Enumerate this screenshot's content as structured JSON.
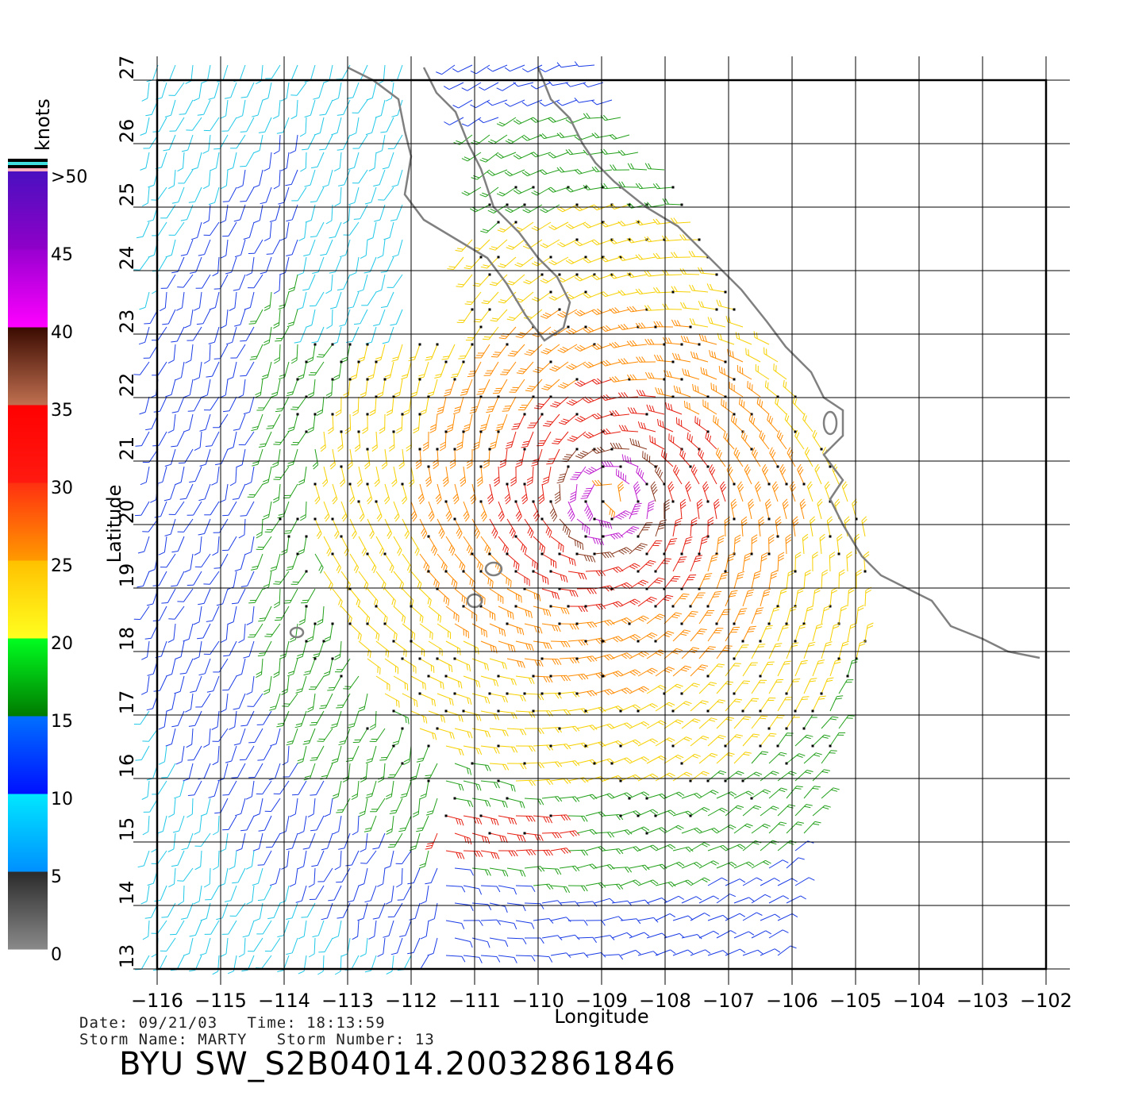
{
  "map": {
    "xaxis": {
      "label": "Longitude",
      "ticks": [
        "-116",
        "-115",
        "-114",
        "-113",
        "-112",
        "-111",
        "-110",
        "-109",
        "-108",
        "-107",
        "-106",
        "-105",
        "-104",
        "-103",
        "-102"
      ],
      "values": [
        -116,
        -115,
        -114,
        -113,
        -112,
        -111,
        -110,
        -109,
        -108,
        -107,
        -106,
        -105,
        -104,
        -103,
        -102
      ],
      "range": [
        -116,
        -102
      ]
    },
    "yaxis": {
      "label": "Latitude",
      "ticks": [
        "13",
        "14",
        "15",
        "16",
        "17",
        "18",
        "19",
        "20",
        "21",
        "22",
        "23",
        "24",
        "25",
        "26",
        "27"
      ],
      "values": [
        13,
        14,
        15,
        16,
        17,
        18,
        19,
        20,
        21,
        22,
        23,
        24,
        25,
        26,
        27
      ],
      "range": [
        13,
        27
      ]
    },
    "grid": true,
    "storm_center": [
      -108.9,
      20.4
    ],
    "coastline_color": "#808080"
  },
  "colorbar": {
    "title": "knots",
    "labels": [
      ">50",
      "45",
      "40",
      "35",
      "30",
      "25",
      "20",
      "15",
      "10",
      "5",
      "0"
    ],
    "bands": [
      {
        "from": 0,
        "to": 5,
        "top": "#2a2a2a",
        "bottom": "#8a8a8a"
      },
      {
        "from": 5,
        "to": 10,
        "top": "#00e8ff",
        "bottom": "#0090ff"
      },
      {
        "from": 10,
        "to": 15,
        "top": "#0070ff",
        "bottom": "#0010ff"
      },
      {
        "from": 15,
        "to": 20,
        "top": "#00ff20",
        "bottom": "#007a00"
      },
      {
        "from": 20,
        "to": 25,
        "top": "#ffc000",
        "bottom": "#ffff20"
      },
      {
        "from": 25,
        "to": 30,
        "top": "#ff3010",
        "bottom": "#ff9a00"
      },
      {
        "from": 30,
        "to": 35,
        "top": "#ff0000",
        "bottom": "#ff1a10"
      },
      {
        "from": 35,
        "to": 40,
        "top": "#3a0a00",
        "bottom": "#c07050"
      },
      {
        "from": 40,
        "to": 45,
        "top": "#9800d0",
        "bottom": "#ff00ff"
      },
      {
        "from": 45,
        "to": 50,
        "top": "#4a10c0",
        "bottom": "#9000c8"
      }
    ],
    "top_stripe_colors": [
      "#000000",
      "#40e0e0",
      "#000000",
      "#ffb0c0"
    ]
  },
  "footer": {
    "line1": "Date: 09/21/03   Time: 18:13:59",
    "line2": "Storm Name: MARTY   Storm Number: 13",
    "title": "BYU SW_S2B04014.20032861846"
  }
}
